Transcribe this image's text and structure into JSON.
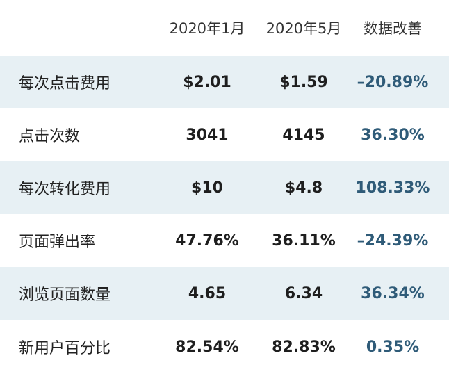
{
  "table": {
    "columns": [
      "2020年1月",
      "2020年5月",
      "数据改善"
    ],
    "rows": [
      [
        "每次点击费用",
        "$2.01",
        "$1.59",
        "–20.89%"
      ],
      [
        "点击次数",
        "3041",
        "4145",
        "36.30%"
      ],
      [
        "每次转化费用",
        "$10",
        "$4.8",
        "108.33%"
      ],
      [
        "页面弹出率",
        "47.76%",
        "36.11%",
        "–24.39%"
      ],
      [
        "浏览页面数量",
        "4.65",
        "6.34",
        "36.34%"
      ],
      [
        "新用户百分比",
        "82.54%",
        "82.83%",
        "0.35%"
      ]
    ]
  }
}
